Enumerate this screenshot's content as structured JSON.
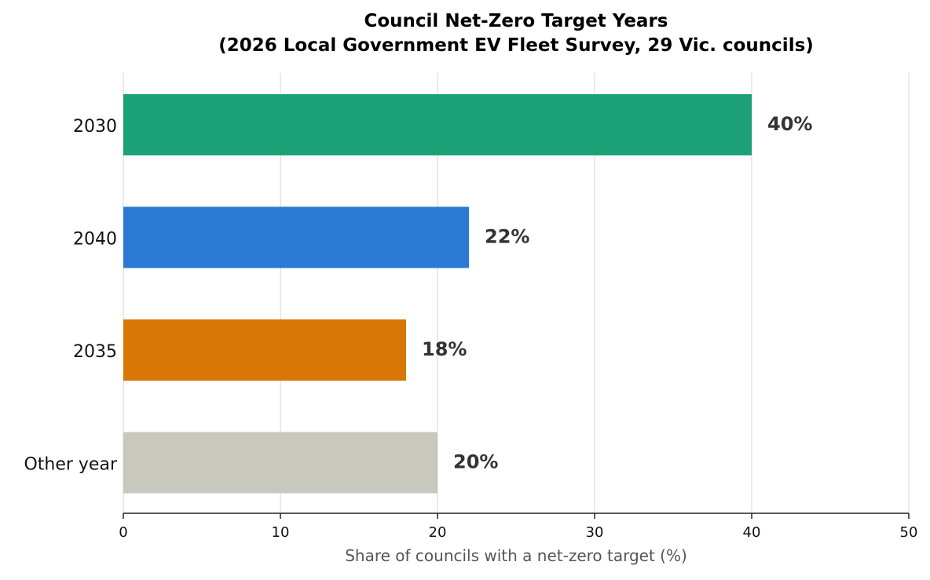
{
  "chart_data": {
    "type": "bar",
    "orientation": "horizontal",
    "title_line1": "Council Net-Zero Target Years",
    "title_line2": "(2026 Local Government EV Fleet Survey, 29 Vic. councils)",
    "xlabel": "Share of councils with a net-zero target (%)",
    "ylabel": "",
    "xlim": [
      0,
      50
    ],
    "xticks": [
      0,
      10,
      20,
      30,
      40,
      50
    ],
    "grid": "vertical",
    "legend": "none",
    "categories": [
      "2030",
      "2040",
      "2035",
      "Other year"
    ],
    "values": [
      40,
      22,
      18,
      20
    ],
    "value_labels": [
      "40%",
      "22%",
      "18%",
      "20%"
    ],
    "colors": [
      "#1ca176",
      "#2a7ad5",
      "#d97706",
      "#c8c8bf"
    ]
  }
}
